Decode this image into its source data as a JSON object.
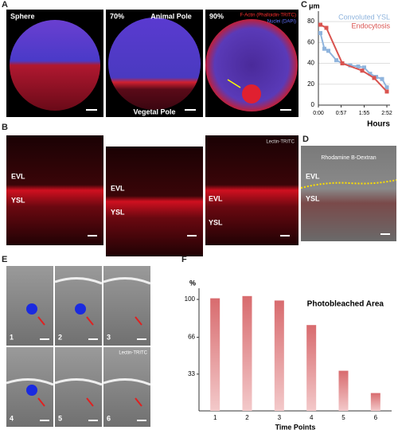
{
  "panel_letters": [
    "A",
    "B",
    "C",
    "D",
    "E",
    "F"
  ],
  "panel_a": {
    "stages": [
      "Sphere",
      "70%",
      "90%"
    ],
    "animal_pole": "Animal Pole",
    "vegetal_pole": "Vegetal Pole",
    "stain_actin": "F-Actin (Phalloidin-TRITC)",
    "stain_nuclei": "Nuclei (DAPI)"
  },
  "panel_b": {
    "stain": "Lectin-TRITC",
    "labels": [
      [
        "EVL",
        "YSL"
      ],
      [
        "EVL",
        "YSL"
      ],
      [
        "EVL",
        "YSL"
      ]
    ]
  },
  "panel_d": {
    "stain": "Rhodamine B-Dextran",
    "evl": "EVL",
    "ysl": "YSL"
  },
  "panel_e": {
    "frames": [
      "1",
      "2",
      "3",
      "4",
      "5",
      "6"
    ],
    "stain": "Lectin-TRITC"
  },
  "chart_data": [
    {
      "type": "line",
      "y_label": "μm",
      "x_label": "Hours",
      "series": [
        {
          "name": "Convoluted YSL",
          "color": "#8fb4dd",
          "x": [
            5,
            15,
            25,
            45,
            60,
            80,
            100,
            115,
            130,
            145,
            160,
            172
          ],
          "values": [
            69,
            54,
            52,
            43,
            40,
            38,
            37,
            36,
            30,
            27,
            25,
            17
          ]
        },
        {
          "name": "Endocytosis",
          "color": "#d9534f",
          "x": [
            5,
            20,
            60,
            110,
            140,
            172
          ],
          "values": [
            77,
            74,
            40,
            33,
            26,
            13
          ]
        }
      ],
      "xlim": [
        0,
        180
      ],
      "xticks": [
        {
          "value": 0,
          "label": "0:00"
        },
        {
          "value": 57,
          "label": "0:57"
        },
        {
          "value": 115,
          "label": "1:55"
        },
        {
          "value": 172,
          "label": "2:52"
        }
      ],
      "ylim": [
        0,
        90
      ],
      "yticks": [
        0,
        20,
        40,
        60,
        80
      ],
      "grid": true
    },
    {
      "type": "bar",
      "title": "Photobleached Area",
      "y_label": "%",
      "x_label": "Time Points",
      "categories": [
        "1",
        "2",
        "3",
        "4",
        "5",
        "6"
      ],
      "values": [
        101,
        103,
        99,
        77,
        36,
        16
      ],
      "color": "#d86b6e",
      "ylim": [
        0,
        110
      ],
      "yticks": [
        33,
        66,
        100
      ]
    }
  ]
}
